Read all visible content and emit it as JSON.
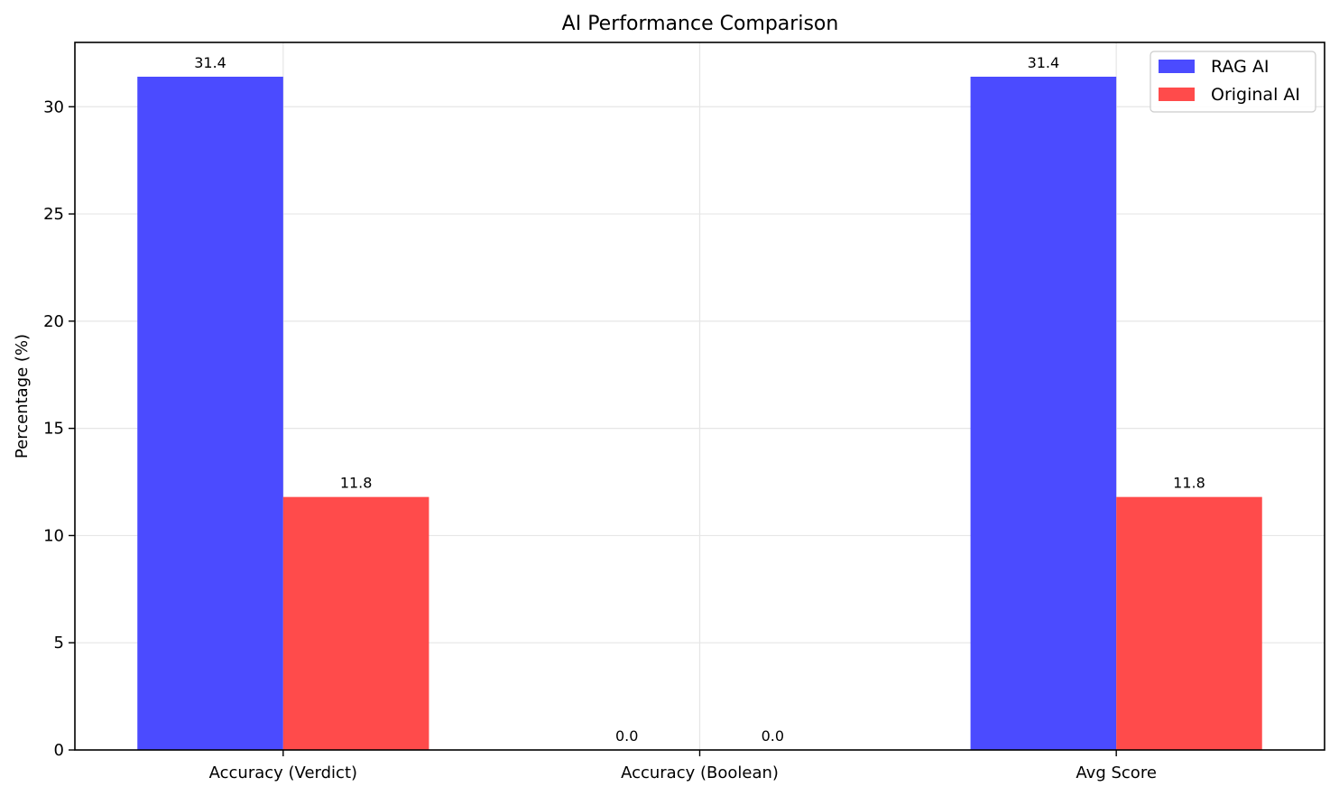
{
  "chart_data": {
    "type": "bar",
    "title": "AI Performance Comparison",
    "xlabel": "",
    "ylabel": "Percentage (%)",
    "categories": [
      "Accuracy (Verdict)",
      "Accuracy (Boolean)",
      "Avg Score"
    ],
    "series": [
      {
        "name": "RAG AI",
        "values": [
          31.4,
          0.0,
          31.4
        ],
        "color": "#4b4bff"
      },
      {
        "name": "Original AI",
        "values": [
          11.8,
          0.0,
          11.8
        ],
        "color": "#ff4b4b"
      }
    ],
    "ylim": [
      0,
      33
    ],
    "yticks": [
      0,
      5,
      10,
      15,
      20,
      25,
      30
    ],
    "grid": true,
    "legend_position": "top-right"
  }
}
